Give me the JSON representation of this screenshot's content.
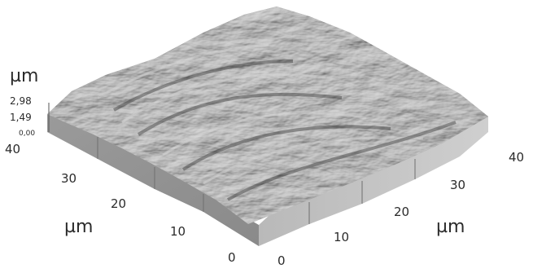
{
  "image": {
    "kind": "3D surface topography render",
    "surface_tone": "#7a7a7a"
  },
  "z_axis": {
    "unit": "µm",
    "ticks": [
      "2,98",
      "1,49",
      "0,00"
    ]
  },
  "left_axis": {
    "unit": "µm",
    "ticks": [
      "40",
      "30",
      "20",
      "10",
      "0"
    ]
  },
  "right_axis": {
    "unit": "µm",
    "ticks": [
      "0",
      "10",
      "20",
      "30",
      "40"
    ]
  }
}
